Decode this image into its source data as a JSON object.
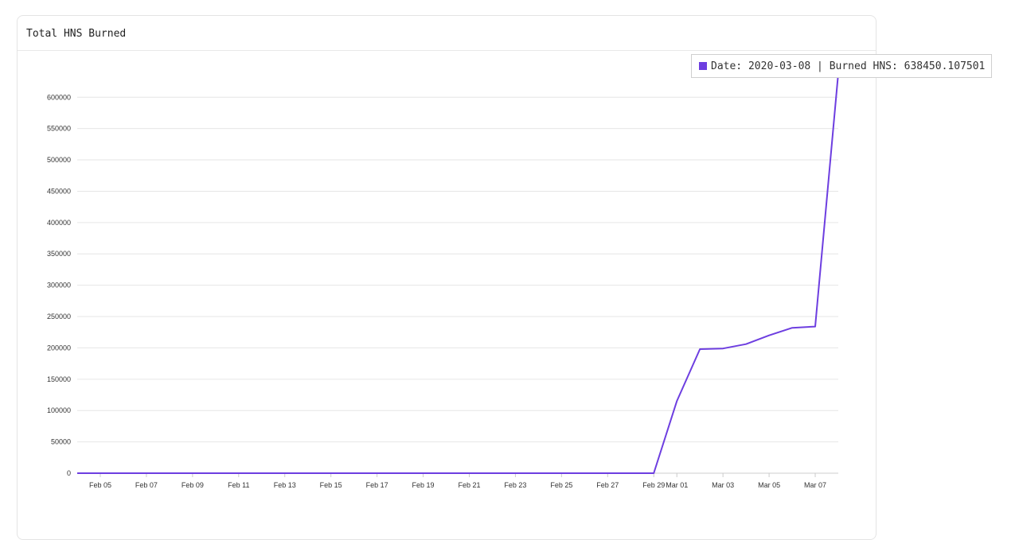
{
  "card": {
    "title": "Total HNS Burned"
  },
  "tooltip": {
    "text": "Date: 2020-03-08 | Burned HNS: 638450.107501"
  },
  "colors": {
    "series": "#6d3ee0",
    "grid": "#e6e6e6",
    "axis": "#cccccc"
  },
  "chart_data": {
    "type": "line",
    "title": "Total HNS Burned",
    "xlabel": "",
    "ylabel": "",
    "x_dates": [
      "2020-02-04",
      "2020-02-05",
      "2020-02-06",
      "2020-02-07",
      "2020-02-08",
      "2020-02-09",
      "2020-02-10",
      "2020-02-11",
      "2020-02-12",
      "2020-02-13",
      "2020-02-14",
      "2020-02-15",
      "2020-02-16",
      "2020-02-17",
      "2020-02-18",
      "2020-02-19",
      "2020-02-20",
      "2020-02-21",
      "2020-02-22",
      "2020-02-23",
      "2020-02-24",
      "2020-02-25",
      "2020-02-26",
      "2020-02-27",
      "2020-02-28",
      "2020-02-29",
      "2020-03-01",
      "2020-03-02",
      "2020-03-03",
      "2020-03-04",
      "2020-03-05",
      "2020-03-06",
      "2020-03-07",
      "2020-03-08"
    ],
    "series": [
      {
        "values": [
          0,
          0,
          0,
          0,
          0,
          0,
          0,
          0,
          0,
          0,
          0,
          0,
          0,
          0,
          0,
          0,
          0,
          0,
          0,
          0,
          0,
          0,
          0,
          0,
          0,
          0,
          115000,
          198000,
          199000,
          206000,
          220000,
          232000,
          234000,
          638450.107501
        ]
      }
    ],
    "x_ticks": [
      "Feb 05",
      "Feb 07",
      "Feb 09",
      "Feb 11",
      "Feb 13",
      "Feb 15",
      "Feb 17",
      "Feb 19",
      "Feb 21",
      "Feb 23",
      "Feb 25",
      "Feb 27",
      "Feb 29",
      "Mar 01",
      "Mar 03",
      "Mar 05",
      "Mar 07"
    ],
    "x_tick_dates": [
      "2020-02-05",
      "2020-02-07",
      "2020-02-09",
      "2020-02-11",
      "2020-02-13",
      "2020-02-15",
      "2020-02-17",
      "2020-02-19",
      "2020-02-21",
      "2020-02-23",
      "2020-02-25",
      "2020-02-27",
      "2020-02-29",
      "2020-03-01",
      "2020-03-03",
      "2020-03-05",
      "2020-03-07"
    ],
    "y_ticks": [
      0,
      50000,
      100000,
      150000,
      200000,
      250000,
      300000,
      350000,
      400000,
      450000,
      500000,
      550000,
      600000
    ],
    "ylim": [
      0,
      660000
    ],
    "grid": true,
    "legend": "none"
  }
}
